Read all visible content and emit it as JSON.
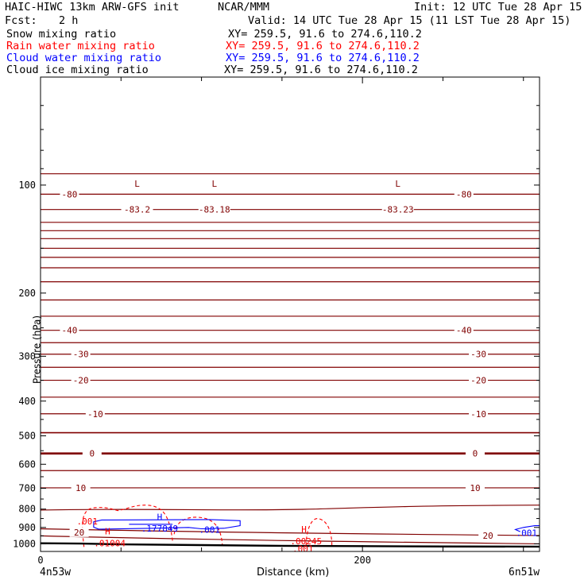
{
  "header": {
    "title": "HAIC-HIWC 13km ARW-GFS init",
    "org": "NCAR/MMM",
    "init": "Init: 12 UTC Tue 28 Apr 15",
    "fcst_label": "Fcst:",
    "fcst_value": "2 h",
    "valid": "Valid: 14 UTC Tue 28 Apr 15 (11 LST Tue 28 Apr 15)"
  },
  "legend": [
    {
      "name": "Snow mixing ratio",
      "xy": "XY= 259.5, 91.6 to 274.6,110.2",
      "color": "#000000"
    },
    {
      "name": "Rain water mixing ratio",
      "xy": "XY= 259.5, 91.6 to 274.6,110.2",
      "color": "#ff0000"
    },
    {
      "name": "Cloud water mixing ratio",
      "xy": "XY= 259.5, 91.6 to 274.6,110.2",
      "color": "#0000ff"
    },
    {
      "name": "Cloud ice mixing ratio",
      "xy": "XY= 259.5, 91.6 to 274.6,110.2",
      "color": "#000000"
    }
  ],
  "axes": {
    "ylabel": "Pressure (hPa)",
    "xlabel": "Distance (km)",
    "x_start": "4n53w",
    "x_end": "6n51w"
  },
  "colors": {
    "temperature": "#800000",
    "rain": "#ff0000",
    "cloud": "#0000ff",
    "surface": "#000000"
  },
  "chart_data": {
    "type": "contour",
    "x_unit": "km",
    "xlim": [
      0,
      310
    ],
    "ylim_hpa": [
      50,
      1050
    ],
    "y_scale": "log",
    "x_ticks": [
      0,
      200
    ],
    "y_ticks": [
      100,
      200,
      300,
      400,
      500,
      600,
      700,
      800,
      900,
      1000
    ],
    "temperature_labels": [
      {
        "text": "-80",
        "x": 18,
        "p": 106
      },
      {
        "text": "-80",
        "x": 263,
        "p": 106
      },
      {
        "text": "-40",
        "x": 18,
        "p": 254
      },
      {
        "text": "-40",
        "x": 263,
        "p": 254
      },
      {
        "text": "-30",
        "x": 25,
        "p": 296
      },
      {
        "text": "-30",
        "x": 272,
        "p": 296
      },
      {
        "text": "-20",
        "x": 25,
        "p": 350
      },
      {
        "text": "-20",
        "x": 272,
        "p": 350
      },
      {
        "text": "-10",
        "x": 34,
        "p": 434
      },
      {
        "text": "-10",
        "x": 272,
        "p": 434
      },
      {
        "text": "0",
        "x": 32,
        "p": 560
      },
      {
        "text": "0",
        "x": 270,
        "p": 560
      },
      {
        "text": "10",
        "x": 25,
        "p": 698
      },
      {
        "text": "10",
        "x": 270,
        "p": 698
      },
      {
        "text": "20",
        "x": 24,
        "p": 928
      },
      {
        "text": "20",
        "x": 278,
        "p": 948
      }
    ],
    "lows": [
      {
        "label": "L",
        "value": "-83.2",
        "x": 60
      },
      {
        "label": "L",
        "value": "-83.18",
        "x": 108
      },
      {
        "label": "L",
        "value": "-83.23",
        "x": 222
      }
    ],
    "rain_highs": [
      {
        "label": "H",
        "value": ".01004",
        "x": 43,
        "p": 990
      },
      {
        "label": "H",
        "value": ".00245",
        "x": 165,
        "p": 978
      }
    ],
    "rain_contour_labels": [
      {
        "text": ".001",
        "x": 29,
        "p": 866
      },
      {
        "text": ".001",
        "x": 163,
        "p": 1032
      }
    ],
    "cloud_highs": [
      {
        "label": "H",
        "value": ".177849",
        "x": 74,
        "p": 878
      }
    ],
    "cloud_contour_labels": [
      {
        "text": ".001",
        "x": 105,
        "p": 912
      },
      {
        "text": ".001",
        "x": 302,
        "p": 932
      }
    ],
    "surface_pressure": [
      {
        "x": 0,
        "p": 996
      },
      {
        "x": 25,
        "p": 998
      },
      {
        "x": 50,
        "p": 1003
      },
      {
        "x": 100,
        "p": 1008
      },
      {
        "x": 150,
        "p": 1013
      },
      {
        "x": 200,
        "p": 1015
      },
      {
        "x": 250,
        "p": 1017
      },
      {
        "x": 310,
        "p": 1018
      }
    ]
  }
}
